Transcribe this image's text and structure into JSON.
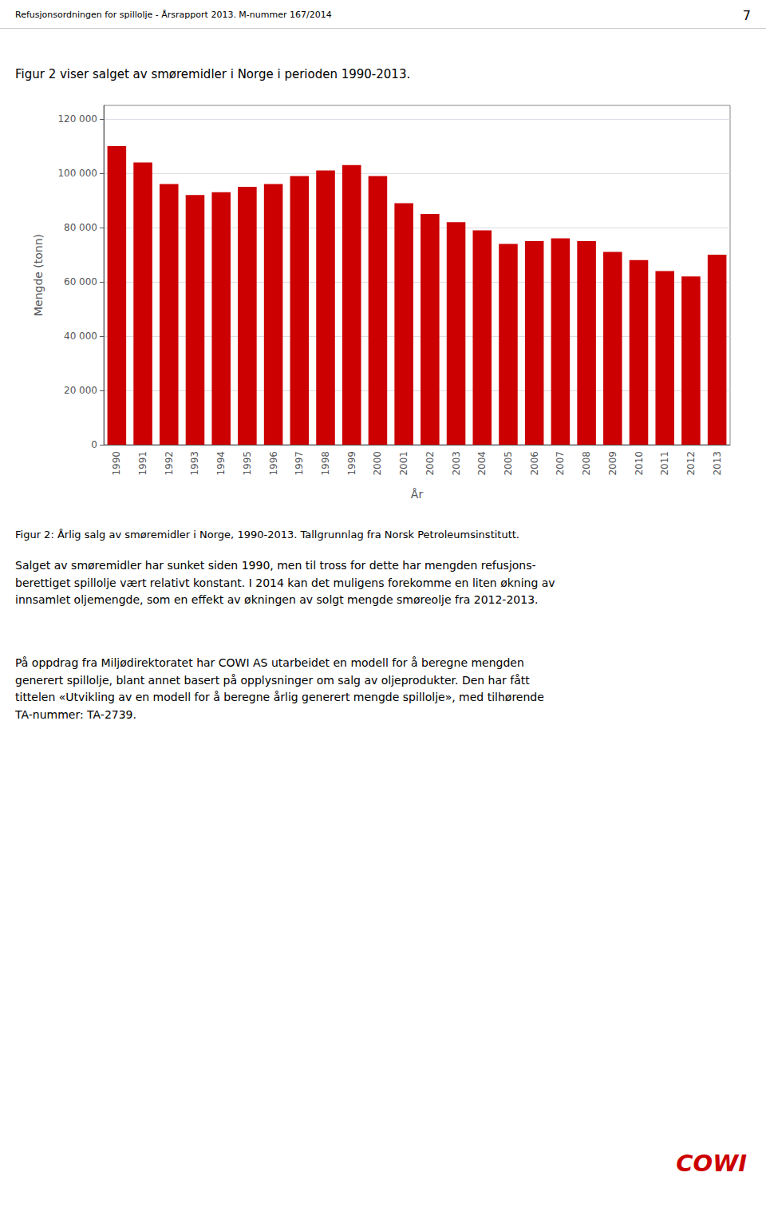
{
  "chart_data": {
    "type": "bar",
    "title": "Figur 2 viser salget av smøremidler i Norge i perioden 1990-2013.",
    "categories": [
      "1990",
      "1991",
      "1992",
      "1993",
      "1994",
      "1995",
      "1996",
      "1997",
      "1998",
      "1999",
      "2000",
      "2001",
      "2002",
      "2003",
      "2004",
      "2005",
      "2006",
      "2007",
      "2008",
      "2009",
      "2010",
      "2011",
      "2012",
      "2013"
    ],
    "values": [
      110000,
      104000,
      96000,
      92000,
      93000,
      95000,
      96000,
      99000,
      101000,
      103000,
      99000,
      89000,
      85000,
      82000,
      79000,
      74000,
      75000,
      76000,
      75000,
      71000,
      68000,
      64000,
      62000,
      70000
    ],
    "color": "#cc0000",
    "xlabel": "År",
    "ylabel": "Mengde (tonn)",
    "ylim": [
      0,
      125000
    ],
    "yticks": [
      0,
      {
        "value": 20000,
        "label": "20 000"
      },
      {
        "value": 40000,
        "label": "40 000"
      },
      {
        "value": 60000,
        "label": "60 000"
      },
      {
        "value": 80000,
        "label": "80 000"
      },
      {
        "value": 100000,
        "label": "100 000"
      },
      {
        "value": 120000,
        "label": "120 000"
      }
    ],
    "grid": true,
    "annotations": [
      {
        "text": "Refusjonsordningen for spillolje - Årsrapport 2013. M-nummer 167/2014"
      },
      {
        "text": "7"
      },
      {
        "text": "Figur 2: Årlig salg av smøremidler i Norge, 1990-2013. Tallgrunnlag fra Norsk Petroleumsinstitutt."
      },
      {
        "text": "Salget av smøremidler har sunket siden 1990, men til tross for dette har mengden refusjons-\nberettiget spillolje vært relativt konstant. I 2014 kan det muligens forekomme en liten økning av\ninnsamlet oljemengde, som en effekt av økningen av solgt mengde smøreolje fra 2012-2013."
      },
      {
        "text": "På oppdrag fra Miljødirektoratet har COWI AS utarbeidet en modell for å beregne mengden\ngenerert spillolje, blant annet basert på opplysninger om salg av oljeprodukter. Den har fått\ntittelen «Utvikling av en modell for å beregne årlig generert mengde spillolje», med tilhørende\nTA-nummer: TA-2739."
      },
      {
        "text": "COWI",
        "color": "#cc0000"
      }
    ]
  }
}
